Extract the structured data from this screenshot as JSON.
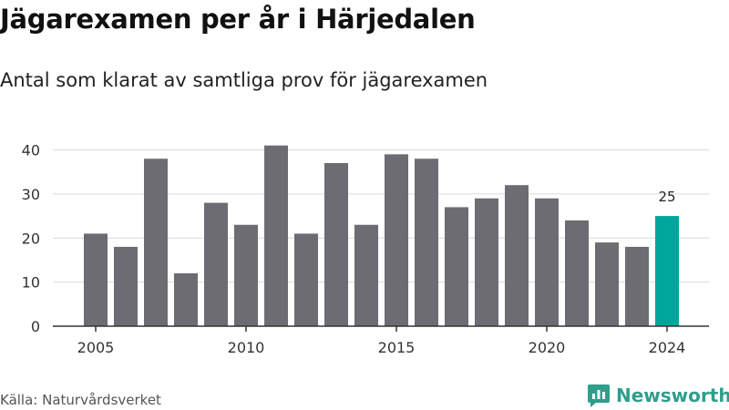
{
  "header": {
    "title": "Jägarexamen per år i Härjedalen",
    "subtitle": "Antal som klarat av samtliga prov för jägarexamen"
  },
  "footer": {
    "source": "Källa: Naturvårdsverket",
    "brand": "Newsworthy"
  },
  "colors": {
    "bar": "#6d6c72",
    "highlight": "#00a69c",
    "grid": "#d9d9d9",
    "axis": "#333333",
    "brand": "#2f9e8b"
  },
  "icons": {
    "brand": "newsworthy-logo-icon"
  },
  "chart_data": {
    "type": "bar",
    "title": "Jägarexamen per år i Härjedalen",
    "subtitle": "Antal som klarat av samtliga prov för jägarexamen",
    "xlabel": "",
    "ylabel": "",
    "x": [
      2005,
      2006,
      2007,
      2008,
      2009,
      2010,
      2011,
      2012,
      2013,
      2014,
      2015,
      2016,
      2017,
      2018,
      2019,
      2020,
      2021,
      2022,
      2023,
      2024
    ],
    "values": [
      21,
      18,
      38,
      12,
      28,
      23,
      41,
      21,
      37,
      23,
      39,
      38,
      27,
      29,
      32,
      29,
      24,
      19,
      18,
      25
    ],
    "ylim": [
      0,
      43
    ],
    "yticks": [
      0,
      10,
      20,
      30,
      40
    ],
    "xticks": [
      2005,
      2010,
      2015,
      2020,
      2024
    ],
    "highlight": {
      "x": 2024,
      "label": "25"
    },
    "grid": "horizontal",
    "legend": "none"
  }
}
